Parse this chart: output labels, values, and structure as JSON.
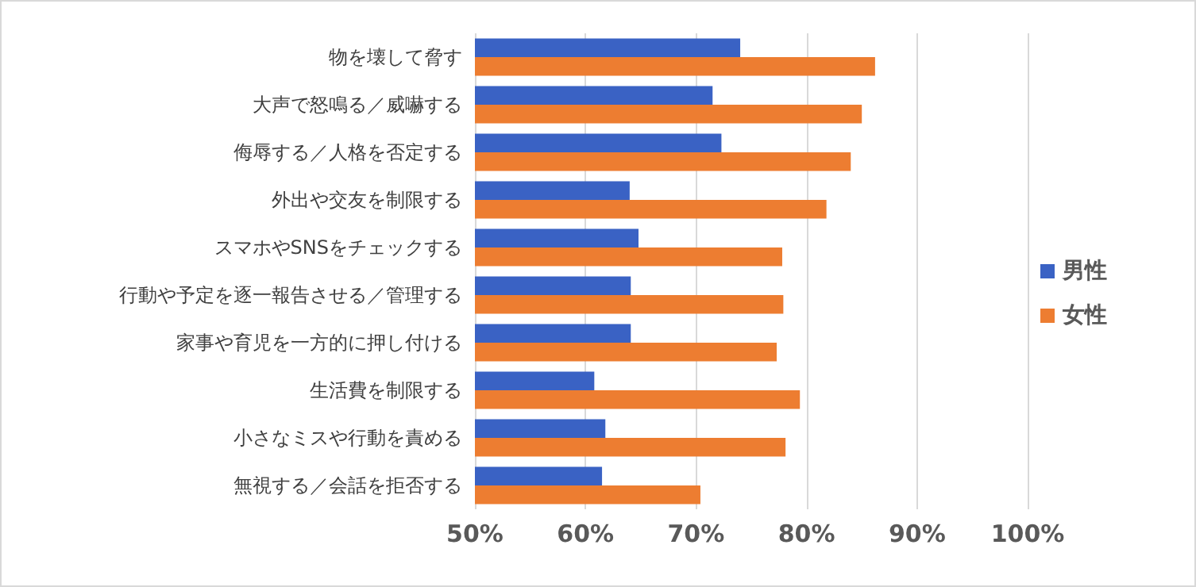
{
  "chart_data": {
    "type": "bar",
    "orientation": "horizontal",
    "categories": [
      "物を壊して脅す",
      "大声で怒鳴る／威嚇する",
      "侮辱する／人格を否定する",
      "外出や交友を制限する",
      "スマホやSNSをチェックする",
      "行動や予定を逐一報告させる／管理する",
      "家事や育児を一方的に押し付ける",
      "生活費を制限する",
      "小さなミスや行動を責める",
      "無視する／会話を拒否する"
    ],
    "series": [
      {
        "name": "男性",
        "color": "#3a62c4",
        "values": [
          74.0,
          71.5,
          72.3,
          64.0,
          64.8,
          64.1,
          64.1,
          60.8,
          61.8,
          61.5
        ]
      },
      {
        "name": "女性",
        "color": "#ed7d31",
        "values": [
          86.2,
          85.0,
          84.0,
          81.8,
          77.8,
          77.9,
          77.3,
          79.4,
          78.1,
          70.4
        ]
      }
    ],
    "xlim": [
      50,
      100
    ],
    "xticks": [
      {
        "value": 50,
        "label": "50%"
      },
      {
        "value": 60,
        "label": "60%"
      },
      {
        "value": 70,
        "label": "70%"
      },
      {
        "value": 80,
        "label": "80%"
      },
      {
        "value": 90,
        "label": "90%"
      },
      {
        "value": 100,
        "label": "100%"
      }
    ],
    "grid": "x",
    "legend": "right"
  }
}
